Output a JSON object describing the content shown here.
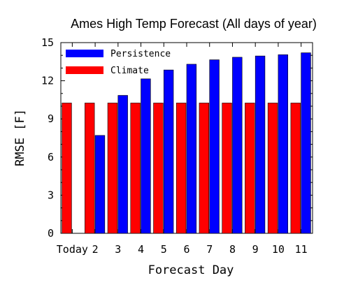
{
  "chart_data": {
    "type": "bar",
    "title": "Ames High Temp Forecast (All days of year)",
    "xlabel": "Forecast Day",
    "ylabel": "RMSE [F]",
    "categories": [
      "Today",
      "2",
      "3",
      "4",
      "5",
      "6",
      "7",
      "8",
      "9",
      "10",
      "11"
    ],
    "ylim": [
      0,
      15
    ],
    "yticks": [
      0,
      3,
      6,
      9,
      12,
      15
    ],
    "legend_position": "top-left",
    "series": [
      {
        "name": "Persistence",
        "color": "#0000ff",
        "values": [
          null,
          7.7,
          10.85,
          12.15,
          12.85,
          13.3,
          13.65,
          13.85,
          13.95,
          14.05,
          14.2
        ]
      },
      {
        "name": "Climate",
        "color": "#ff0000",
        "values": [
          10.25,
          10.25,
          10.25,
          10.25,
          10.25,
          10.25,
          10.25,
          10.25,
          10.25,
          10.25,
          10.25
        ]
      }
    ]
  }
}
